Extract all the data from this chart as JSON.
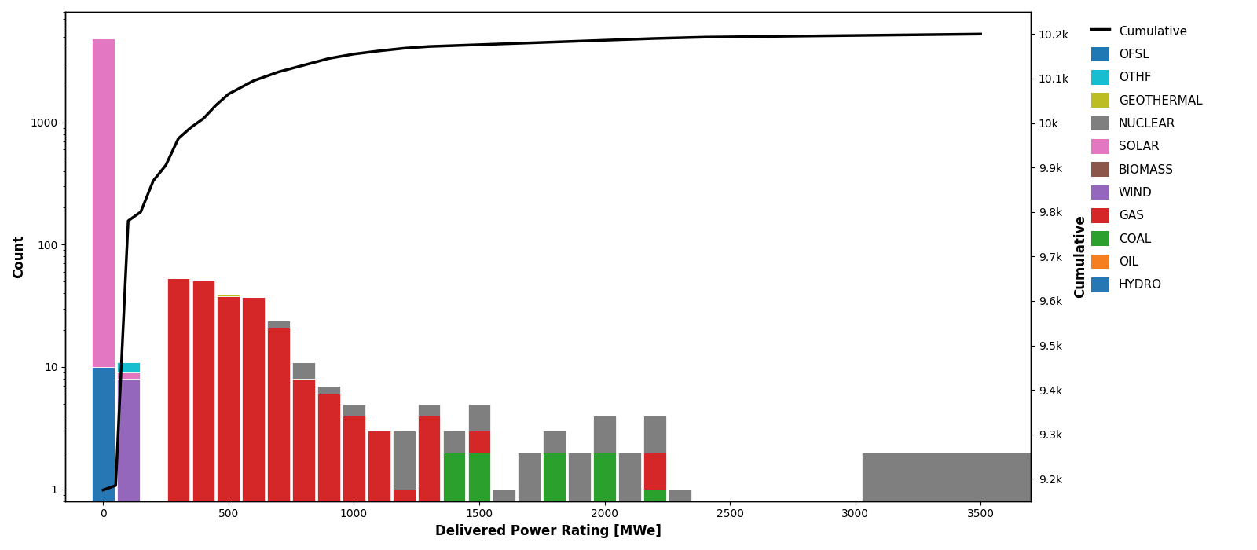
{
  "xlabel": "Delivered Power Rating [MWe]",
  "ylabel": "Count",
  "ylabel_right": "Cumulative",
  "bin_edges": [
    -50,
    50,
    150,
    250,
    350,
    450,
    550,
    650,
    750,
    850,
    950,
    1050,
    1150,
    1250,
    1350,
    1450,
    1550,
    1650,
    1750,
    1850,
    1950,
    2050,
    2150,
    2250,
    2350,
    2450,
    3500
  ],
  "bin_centers": [
    0,
    100,
    200,
    300,
    400,
    500,
    600,
    700,
    800,
    900,
    1000,
    1100,
    1200,
    1300,
    1400,
    1500,
    1600,
    1700,
    1800,
    1900,
    2000,
    2100,
    2200,
    2300,
    2400,
    3500
  ],
  "fuel_types": [
    "HYDRO",
    "OIL",
    "COAL",
    "GAS",
    "WIND",
    "BIOMASS",
    "SOLAR",
    "NUCLEAR",
    "GEOTHERMAL",
    "OTHF",
    "OFSL"
  ],
  "colors": {
    "HYDRO": "#2777b4",
    "OIL": "#f57f20",
    "COAL": "#2ca02c",
    "GAS": "#d62728",
    "WIND": "#9467bd",
    "BIOMASS": "#8c564b",
    "SOLAR": "#e377c2",
    "NUCLEAR": "#7f7f7f",
    "GEOTHERMAL": "#bcbd22",
    "OTHF": "#17becf",
    "OFSL": "#1f77b4"
  },
  "stacked_data": {
    "HYDRO": [
      10,
      0,
      0,
      0,
      0,
      0,
      0,
      0,
      0,
      0,
      0,
      0,
      0,
      0,
      0,
      0,
      0,
      0,
      0,
      0,
      0,
      0,
      0,
      0,
      0,
      0
    ],
    "OIL": [
      0,
      0,
      0,
      0,
      0,
      0,
      0,
      0,
      0,
      0,
      0,
      0,
      0,
      0,
      0,
      0,
      0,
      0,
      0,
      0,
      0,
      0,
      0,
      0,
      0,
      0
    ],
    "COAL": [
      0,
      0,
      0,
      0,
      0,
      0,
      0,
      0,
      0,
      0,
      0,
      0,
      0,
      0,
      2,
      2,
      0,
      0,
      2,
      0,
      2,
      0,
      1,
      0,
      0,
      0
    ],
    "GAS": [
      0,
      0,
      0,
      53,
      51,
      38,
      37,
      21,
      8,
      6,
      4,
      3,
      1,
      4,
      0,
      1,
      0,
      0,
      0,
      0,
      0,
      0,
      1,
      0,
      0,
      0
    ],
    "WIND": [
      0,
      8,
      0,
      0,
      0,
      0,
      0,
      0,
      0,
      0,
      0,
      0,
      0,
      0,
      0,
      0,
      0,
      0,
      0,
      0,
      0,
      0,
      0,
      0,
      0,
      0
    ],
    "BIOMASS": [
      0,
      0,
      0,
      0,
      0,
      0,
      0,
      0,
      0,
      0,
      0,
      0,
      0,
      0,
      0,
      0,
      0,
      0,
      0,
      0,
      0,
      0,
      0,
      0,
      0,
      0
    ],
    "SOLAR": [
      4800,
      1,
      0,
      0,
      0,
      0,
      0,
      0,
      0,
      0,
      0,
      0,
      0,
      0,
      0,
      0,
      0,
      0,
      0,
      0,
      0,
      0,
      0,
      0,
      0,
      0
    ],
    "NUCLEAR": [
      0,
      0,
      0,
      0,
      0,
      0,
      0,
      3,
      3,
      1,
      1,
      0,
      2,
      1,
      1,
      2,
      1,
      2,
      1,
      2,
      2,
      2,
      2,
      1,
      0,
      2
    ],
    "GEOTHERMAL": [
      0,
      0,
      0,
      0,
      0,
      1,
      0,
      0,
      0,
      0,
      0,
      0,
      0,
      0,
      0,
      0,
      0,
      0,
      0,
      0,
      0,
      0,
      0,
      0,
      0,
      0
    ],
    "OTHF": [
      6,
      2,
      0,
      0,
      0,
      0,
      0,
      0,
      0,
      0,
      0,
      0,
      0,
      0,
      0,
      0,
      0,
      0,
      0,
      0,
      0,
      0,
      0,
      0,
      0,
      0
    ],
    "OFSL": [
      0,
      0,
      0,
      0,
      0,
      0,
      0,
      0,
      0,
      0,
      0,
      0,
      0,
      0,
      0,
      0,
      0,
      0,
      0,
      0,
      0,
      0,
      0,
      0,
      0,
      0
    ]
  },
  "cumulative_x": [
    0,
    50,
    100,
    150,
    200,
    250,
    300,
    350,
    400,
    450,
    500,
    600,
    700,
    800,
    900,
    1000,
    1100,
    1200,
    1300,
    1400,
    1500,
    1600,
    1700,
    1800,
    1900,
    2000,
    2200,
    2400,
    3500
  ],
  "cumulative_y": [
    9175,
    9185,
    9780,
    9800,
    9870,
    9905,
    9965,
    9990,
    10010,
    10040,
    10065,
    10095,
    10115,
    10130,
    10145,
    10155,
    10162,
    10168,
    10172,
    10174,
    10176,
    10178,
    10180,
    10182,
    10184,
    10186,
    10190,
    10193,
    10200
  ],
  "xlim": [
    -150,
    3700
  ],
  "ylim_left": [
    0.8,
    8000
  ],
  "ylim_right": [
    9150,
    10250
  ],
  "yticks_right": [
    9200,
    9300,
    9400,
    9500,
    9600,
    9700,
    9800,
    9900,
    10000,
    10100,
    10200
  ],
  "ytick_labels_right": [
    "9.2k",
    "9.3k",
    "9.4k",
    "9.5k",
    "9.6k",
    "9.7k",
    "9.8k",
    "9.9k",
    "10k",
    "10.1k",
    "10.2k"
  ],
  "xticks": [
    0,
    500,
    1000,
    1500,
    2000,
    2500,
    3000,
    3500
  ],
  "legend_order": [
    "Cumulative",
    "OFSL",
    "OTHF",
    "GEOTHERMAL",
    "NUCLEAR",
    "SOLAR",
    "BIOMASS",
    "WIND",
    "GAS",
    "COAL",
    "OIL",
    "HYDRO"
  ]
}
